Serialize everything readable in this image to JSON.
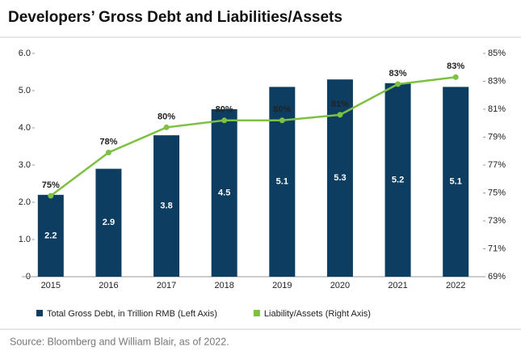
{
  "chart_data": {
    "type": "bar",
    "title": "Developers’ Gross Debt and Liabilities/Assets",
    "source": "Source: Bloomberg and William Blair, as of 2022.",
    "categories": [
      "2015",
      "2016",
      "2017",
      "2018",
      "2019",
      "2020",
      "2021",
      "2022"
    ],
    "series": [
      {
        "name": "Total Gross Debt, in Trillion RMB (Left Axis)",
        "color": "#0e3d62",
        "type": "bar",
        "values": [
          2.2,
          2.9,
          3.8,
          4.5,
          5.1,
          5.3,
          5.2,
          5.1
        ]
      },
      {
        "name": "Liability/Assets (Right Axis)",
        "color": "#7dc142",
        "type": "line",
        "axis": "y2",
        "values": [
          74.8,
          77.9,
          79.7,
          80.2,
          80.2,
          80.6,
          82.8,
          83.3
        ],
        "value_labels": [
          "75%",
          "78%",
          "80%",
          "80%",
          "80%",
          "81%",
          "83%",
          "83%"
        ]
      }
    ],
    "ylim": [
      0,
      6
    ],
    "yticks": [
      0,
      {
        "value": 1,
        "label": "1.0"
      },
      {
        "value": 2,
        "label": "2.0"
      },
      {
        "value": 3,
        "label": "3.0"
      },
      {
        "value": 4,
        "label": "4.0"
      },
      {
        "value": 5,
        "label": "5.0"
      },
      {
        "value": 6,
        "label": "6.0"
      }
    ],
    "y2lim": [
      69,
      85
    ],
    "y2ticks": [
      {
        "value": 69,
        "label": "69%"
      },
      {
        "value": 71,
        "label": "71%"
      },
      {
        "value": 73,
        "label": "73%"
      },
      {
        "value": 75,
        "label": "75%"
      },
      {
        "value": 77,
        "label": "77%"
      },
      {
        "value": 79,
        "label": "79%"
      },
      {
        "value": 81,
        "label": "81%"
      },
      {
        "value": 83,
        "label": "83%"
      },
      {
        "value": 85,
        "label": "85%"
      }
    ],
    "grid": false
  }
}
